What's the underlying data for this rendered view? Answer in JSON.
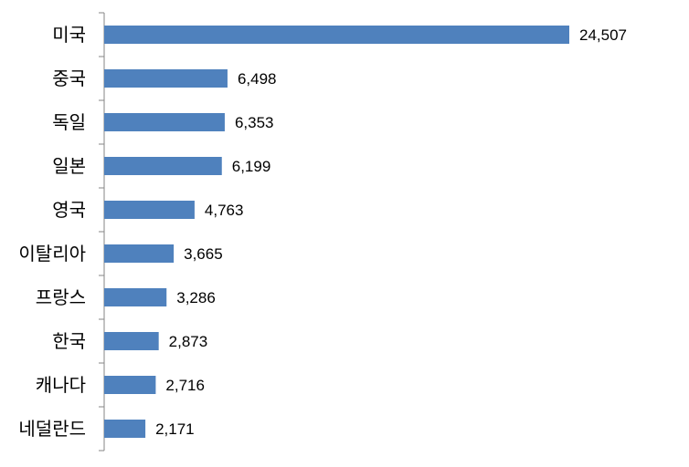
{
  "chart_data": {
    "type": "bar",
    "orientation": "horizontal",
    "categories": [
      "미국",
      "중국",
      "독일",
      "일본",
      "영국",
      "이탈리아",
      "프랑스",
      "한국",
      "캐나다",
      "네덜란드"
    ],
    "values": [
      24507,
      6498,
      6353,
      6199,
      4763,
      3665,
      3286,
      2873,
      2716,
      2171
    ],
    "value_labels": [
      "24,507",
      "6,498",
      "6,353",
      "6,199",
      "4,763",
      "3,665",
      "3,286",
      "2,873",
      "2,716",
      "2,171"
    ],
    "title": "",
    "xlabel": "",
    "ylabel": "",
    "xlim": [
      0,
      24507
    ],
    "grid": false,
    "legend": "none",
    "bar_color": "#4F81BD",
    "axis_color": "#868686"
  }
}
